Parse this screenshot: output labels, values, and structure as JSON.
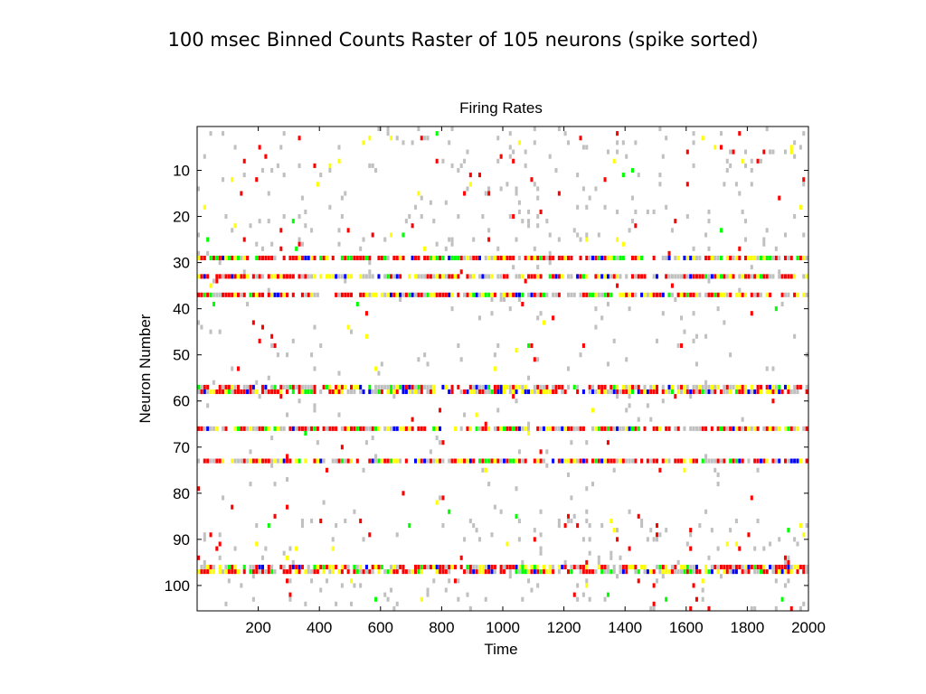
{
  "slide_title": "100 msec Binned Counts Raster of 105 neurons (spike sorted)",
  "chart_data": {
    "type": "heatmap",
    "title": "Firing Rates",
    "xlabel": "Time",
    "ylabel": "Neuron Number",
    "xlim": [
      0,
      2000
    ],
    "ylim": [
      1,
      105
    ],
    "y_reversed": true,
    "xticks": [
      200,
      400,
      600,
      800,
      1000,
      1200,
      1400,
      1600,
      1800,
      2000
    ],
    "yticks": [
      10,
      20,
      30,
      40,
      50,
      60,
      70,
      80,
      90,
      100
    ],
    "bin_width": 10,
    "grid": false,
    "legend": "none",
    "colors": {
      "low": "#c0c0c0",
      "medium": "#ffff00",
      "high": "#ff0000",
      "very_high": "#0000ff",
      "other": "#00ff00"
    },
    "rows": [
      {
        "neuron": 29,
        "note": "dense active row",
        "level": "mixed"
      },
      {
        "neuron": 33,
        "note": "dense active row",
        "level": "mixed"
      },
      {
        "neuron": 37,
        "note": "dense active row",
        "level": "mixed"
      },
      {
        "neuron": 57,
        "note": "dense active row",
        "level": "mixed"
      },
      {
        "neuron": 58,
        "note": "dense active row",
        "level": "mixed"
      },
      {
        "neuron": 66,
        "note": "moderately active row",
        "level": "mixed"
      },
      {
        "neuron": 73,
        "note": "dense active row",
        "level": "mixed"
      },
      {
        "neuron": 96,
        "note": "dense active row",
        "level": "mixed"
      },
      {
        "neuron": 97,
        "note": "dense active row",
        "level": "mixed"
      }
    ]
  }
}
